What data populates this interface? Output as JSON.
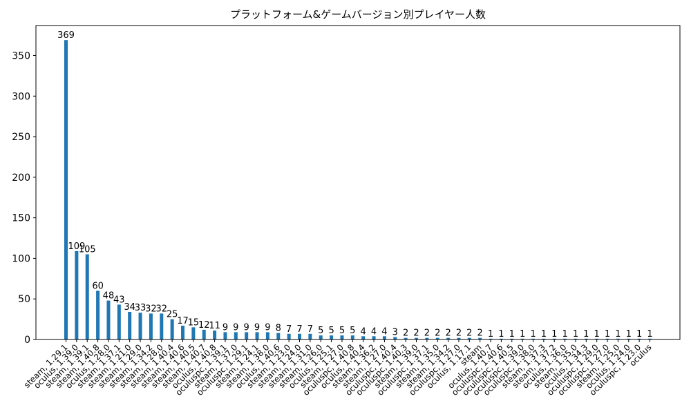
{
  "chart_data": {
    "type": "bar",
    "title": "プラットフォーム&ゲームバージョン別プレイヤー人数",
    "xlabel": "",
    "ylabel": "",
    "ylim": [
      0,
      387
    ],
    "yticks": [
      0,
      50,
      100,
      150,
      200,
      250,
      300,
      350
    ],
    "bar_color": "#1f77b4",
    "categories": [
      "steam, 1.29.1",
      "oculus, 1.39.0",
      "steam, 1.39.1",
      "steam, 1.40.8",
      "oculus, 1.28.0",
      "steam, 1.37.1",
      "steam, 1.21.0",
      "steam, 1.29.0",
      "steam, 1.34.2",
      "steam, 1.28.0",
      "steam, 1.40.4",
      "steam, 1.40.6",
      "steam, 1.40.5",
      "steam, 1.40.7",
      "oculus, 1.40.8",
      "oculuspc, 1.39.1",
      "steam, 1.37.0",
      "oculuspc, 1.29.1",
      "steam, 1.24.1",
      "steam, 1.38.0",
      "oculus, 1.40.6",
      "steam, 1.23.0",
      "steam, 1.24.0",
      "steam, 1.31.0",
      "steam, 1.26.0",
      "oculus, 1.25.1",
      "steam, 1.27.0",
      "oculuspc, 1.40.8",
      "oculus, 1.40.4",
      "steam, 1.36.2",
      "steam, 1.27.0",
      "oculuspc, 1.40.4",
      "oculuspc, 1.40.3",
      "steam, 1.39.0",
      "oculuspc, 1.37.1",
      "steam, 1.35.0",
      "steam, 1.34.2",
      "oculuspc, 1.27.0",
      "oculus, 1.17.1",
      "steam",
      "oculus, 1.40.7",
      "oculuspc, 1.40.6",
      "oculuspc, 1.40.5",
      "oculuspc, 1.39.0",
      "oculuspc, 1.38.0",
      "steam, 1.37.3",
      "steam, 1.37.2",
      "oculus, 1.36.0",
      "steam, 1.35.0",
      "oculus, 1.34.3",
      "oculuspc, 1.29.0",
      "oculuspc, 1.27.0",
      "steam, 1.25.0",
      "oculus, 1.24.0",
      "oculuspc, 1.23.0",
      "oculus"
    ],
    "values": [
      369,
      109,
      105,
      60,
      48,
      43,
      34,
      33,
      32,
      32,
      25,
      17,
      15,
      12,
      11,
      9,
      9,
      9,
      9,
      9,
      8,
      7,
      7,
      7,
      5,
      5,
      5,
      5,
      4,
      4,
      4,
      3,
      2,
      2,
      2,
      2,
      2,
      2,
      2,
      2,
      1,
      1,
      1,
      1,
      1,
      1,
      1,
      1,
      1,
      1,
      1,
      1,
      1,
      1,
      1,
      1
    ]
  }
}
